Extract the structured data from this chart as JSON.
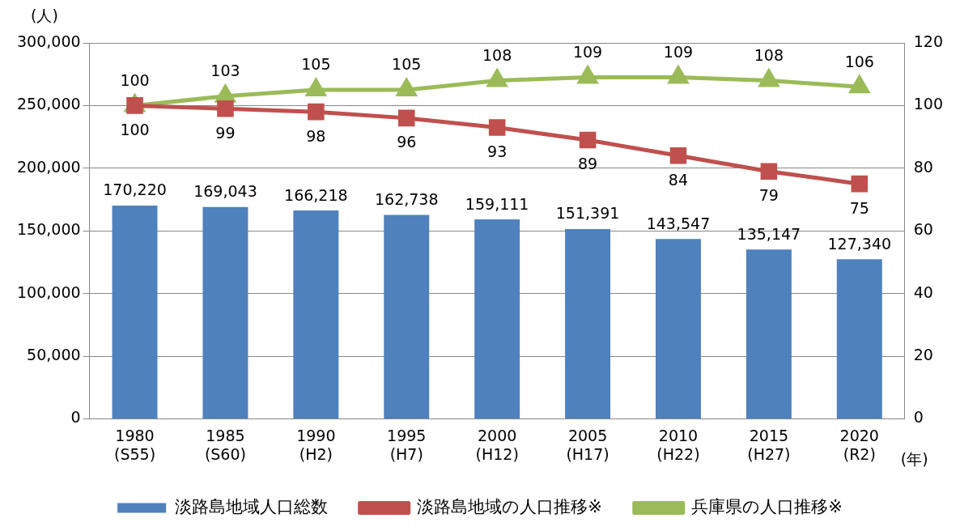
{
  "chart_data": {
    "type": "bar",
    "ylabel": "(人)",
    "xlabel": "(年)",
    "categories": [
      "1980\n(S55)",
      "1985\n(S60)",
      "1990\n(H2)",
      "1995\n(H7)",
      "2000\n(H12)",
      "2005\n(H17)",
      "2010\n(H22)",
      "2015\n(H27)",
      "2020\n(R2)"
    ],
    "series": [
      {
        "name": "淡路島地域人口総数",
        "color": "#4f81bd",
        "values": [
          170220,
          169043,
          166218,
          162738,
          159111,
          151391,
          143547,
          135147,
          127340
        ],
        "value_labels": [
          "170,220",
          "169,043",
          "166,218",
          "162,738",
          "159,111",
          "151,391",
          "143,547",
          "135,147",
          "127,340"
        ]
      },
      {
        "name": "淡路島地域の人口推移※",
        "type": "line",
        "axis": "y2",
        "marker": "square",
        "color": "#c0504d",
        "values": [
          100,
          99,
          98,
          96,
          93,
          89,
          84,
          79,
          75
        ]
      },
      {
        "name": "兵庫県の人口推移※",
        "type": "line",
        "axis": "y2",
        "marker": "triangle",
        "color": "#9bbb59",
        "values": [
          100,
          103,
          105,
          105,
          108,
          109,
          109,
          108,
          106
        ]
      }
    ],
    "ylim": [
      0,
      300000
    ],
    "yticks": [
      0,
      {
        "value": 50000,
        "label": "50,000"
      },
      {
        "value": 100000,
        "label": "100,000"
      },
      {
        "value": 150000,
        "label": "150,000"
      },
      {
        "value": 200000,
        "label": "200,000"
      },
      {
        "value": 250000,
        "label": "250,000"
      },
      {
        "value": 300000,
        "label": "300,000"
      }
    ],
    "y2lim": [
      0,
      120
    ],
    "y2ticks": [
      0,
      20,
      40,
      60,
      80,
      100,
      120
    ],
    "grid": "y",
    "legend": "bottom",
    "data_labels": true
  }
}
